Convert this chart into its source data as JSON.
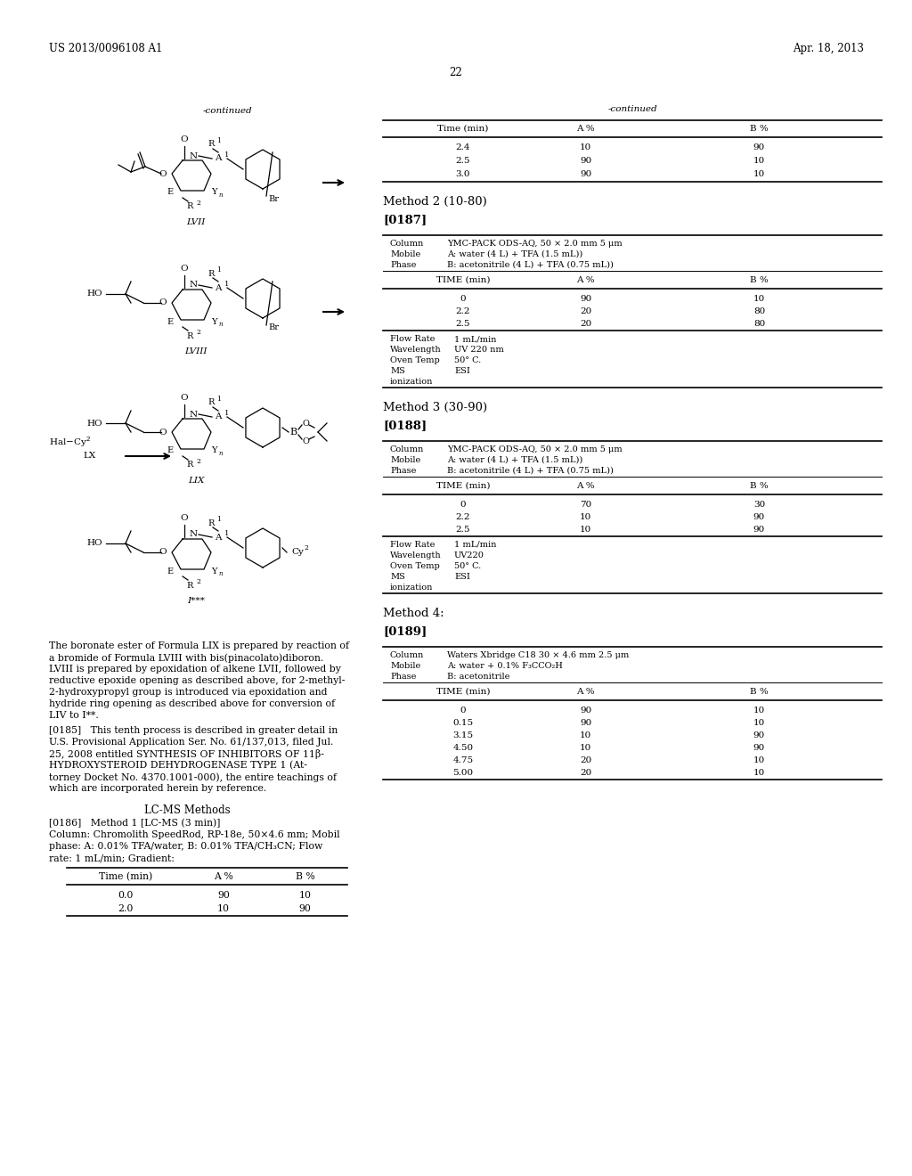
{
  "background_color": "#ffffff",
  "page_number": "22",
  "header_left": "US 2013/0096108 A1",
  "header_right": "Apr. 18, 2013",
  "table1_headers": [
    "Time (min)",
    "A %",
    "B %"
  ],
  "table1_rows": [
    [
      "2.4",
      "10",
      "90"
    ],
    [
      "2.5",
      "90",
      "10"
    ],
    [
      "3.0",
      "90",
      "10"
    ]
  ],
  "method2_title": "Method 2 (10-80)",
  "method2_ref": "[0187]",
  "table2_info": [
    [
      "Column",
      "YMC-PACK ODS-AQ, 50 × 2.0 mm 5 μm"
    ],
    [
      "Mobile",
      "A: water (4 L) + TFA (1.5 mL))"
    ],
    [
      "Phase",
      "B: acetonitrile (4 L) + TFA (0.75 mL))"
    ]
  ],
  "table2_headers": [
    "TIME (min)",
    "A %",
    "B %"
  ],
  "table2_rows": [
    [
      "0",
      "90",
      "10"
    ],
    [
      "2.2",
      "20",
      "80"
    ],
    [
      "2.5",
      "20",
      "80"
    ]
  ],
  "table2_extra": [
    [
      "Flow Rate",
      "1 mL/min"
    ],
    [
      "Wavelength",
      "UV 220 nm"
    ],
    [
      "Oven Temp",
      "50° C."
    ],
    [
      "MS",
      "ESI"
    ],
    [
      "ionization",
      ""
    ]
  ],
  "method3_title": "Method 3 (30-90)",
  "method3_ref": "[0188]",
  "table3_info": [
    [
      "Column",
      "YMC-PACK ODS-AQ, 50 × 2.0 mm 5 μm"
    ],
    [
      "Mobile",
      "A: water (4 L) + TFA (1.5 mL))"
    ],
    [
      "Phase",
      "B: acetonitrile (4 L) + TFA (0.75 mL))"
    ]
  ],
  "table3_headers": [
    "TIME (min)",
    "A %",
    "B %"
  ],
  "table3_rows": [
    [
      "0",
      "70",
      "30"
    ],
    [
      "2.2",
      "10",
      "90"
    ],
    [
      "2.5",
      "10",
      "90"
    ]
  ],
  "table3_extra": [
    [
      "Flow Rate",
      "1 mL/min"
    ],
    [
      "Wavelength",
      "UV220"
    ],
    [
      "Oven Temp",
      "50° C."
    ],
    [
      "MS",
      "ESI"
    ],
    [
      "ionization",
      ""
    ]
  ],
  "method4_title": "Method 4:",
  "method4_ref": "[0189]",
  "table4_info": [
    [
      "Column",
      "Waters Xbridge C18 30 × 4.6 mm 2.5 μm"
    ],
    [
      "Mobile",
      "A: water + 0.1% F₃CCO₂H"
    ],
    [
      "Phase",
      "B: acetonitrile"
    ]
  ],
  "table4_headers": [
    "TIME (min)",
    "A %",
    "B %"
  ],
  "table4_rows": [
    [
      "0",
      "90",
      "10"
    ],
    [
      "0.15",
      "90",
      "10"
    ],
    [
      "3.15",
      "10",
      "90"
    ],
    [
      "4.50",
      "10",
      "90"
    ],
    [
      "4.75",
      "20",
      "10"
    ],
    [
      "5.00",
      "20",
      "10"
    ]
  ],
  "body_text": [
    "The boronate ester of Formula LIX is prepared by reaction of",
    "a bromide of Formula LVIII with bis(pinacolato)diboron.",
    "LVIII is prepared by epoxidation of alkene LVII, followed by",
    "reductive epoxide opening as described above, for 2-methyl-",
    "2-hydroxypropyl group is introduced via epoxidation and",
    "hydride ring opening as described above for conversion of",
    "LIV to I**."
  ],
  "body_text2": [
    "[0185]   This tenth process is described in greater detail in",
    "U.S. Provisional Application Ser. No. 61/137,013, filed Jul.",
    "25, 2008 entitled SYNTHESIS OF INHIBITORS OF 11β-",
    "HYDROXYSTEROID DEHYDROGENASE TYPE 1 (At-",
    "torney Docket No. 4370.1001-000), the entire teachings of",
    "which are incorporated herein by reference."
  ],
  "lc_ms_title": "LC-MS Methods",
  "method1_text": "[0186]   Method 1 [LC-MS (3 min)]",
  "method1_detail": "Column: Chromolith SpeedRod, RP-18e, 50×4.6 mm; Mobil",
  "method1_detail2": "phase: A: 0.01% TFA/water, B: 0.01% TFA/CH₃CN; Flow",
  "method1_detail3": "rate: 1 mL/min; Gradient:",
  "table5_headers": [
    "Time (min)",
    "A %",
    "B %"
  ],
  "table5_rows": [
    [
      "0.0",
      "90",
      "10"
    ],
    [
      "2.0",
      "10",
      "90"
    ]
  ],
  "struct_lvii_label": "LVII",
  "struct_lviii_label": "LVIII",
  "struct_lix_label": "LIX",
  "struct_istar_label": "I***"
}
